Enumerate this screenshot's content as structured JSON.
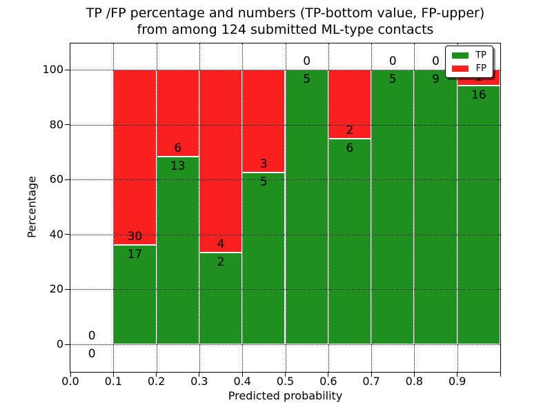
{
  "title": {
    "line1": "TP /FP percentage and numbers (TP-bottom value, FP-upper)",
    "line2": "from among 124 submitted ML-type contacts"
  },
  "x_axis": {
    "label": "Predicted probability",
    "ticks": [
      "0.0",
      "0.1",
      "0.2",
      "0.3",
      "0.4",
      "0.5",
      "0.6",
      "0.7",
      "0.8",
      "0.9"
    ],
    "range": [
      0.0,
      1.0
    ]
  },
  "y_axis": {
    "label": "Percentage",
    "ticks": [
      "0",
      "20",
      "40",
      "60",
      "80",
      "100"
    ],
    "range_shown": [
      0,
      100
    ]
  },
  "legend": {
    "position": "upper right",
    "entries": [
      {
        "label": "TP",
        "color": "#1f8f1f"
      },
      {
        "label": "FP",
        "color": "#fb2020"
      }
    ]
  },
  "colors": {
    "tp": "#1f8f1f",
    "fp": "#fb2020",
    "grid": "#000000",
    "bar_edge": "#ffffff",
    "text": "#000000",
    "background": "#ffffff"
  },
  "chart_data": {
    "type": "bar",
    "stacked": true,
    "normalized": "each bin scaled to 100%; annotations show raw counts (TP below boundary, FP above)",
    "title": "TP /FP percentage and numbers (TP-bottom value, FP-upper) from among 124 submitted ML-type contacts",
    "xlabel": "Predicted probability",
    "ylabel": "Percentage",
    "bin_width": 0.1,
    "categories": [
      "0.0-0.1",
      "0.1-0.2",
      "0.2-0.3",
      "0.3-0.4",
      "0.4-0.5",
      "0.5-0.6",
      "0.6-0.7",
      "0.7-0.8",
      "0.8-0.9",
      "0.9-1.0"
    ],
    "series": [
      {
        "name": "TP",
        "counts": [
          0,
          17,
          13,
          2,
          5,
          5,
          6,
          5,
          9,
          16
        ]
      },
      {
        "name": "FP",
        "counts": [
          0,
          30,
          6,
          4,
          3,
          0,
          2,
          0,
          0,
          1
        ]
      }
    ],
    "tp_percent": [
      0,
      36.2,
      68.4,
      33.3,
      62.5,
      100,
      75,
      100,
      100,
      94.1
    ],
    "total_contacts": 124,
    "xlim": [
      0.0,
      1.0
    ],
    "ylim": [
      -10,
      110
    ],
    "grid": "dotted, drawn above bars",
    "legend_position": "upper right"
  }
}
